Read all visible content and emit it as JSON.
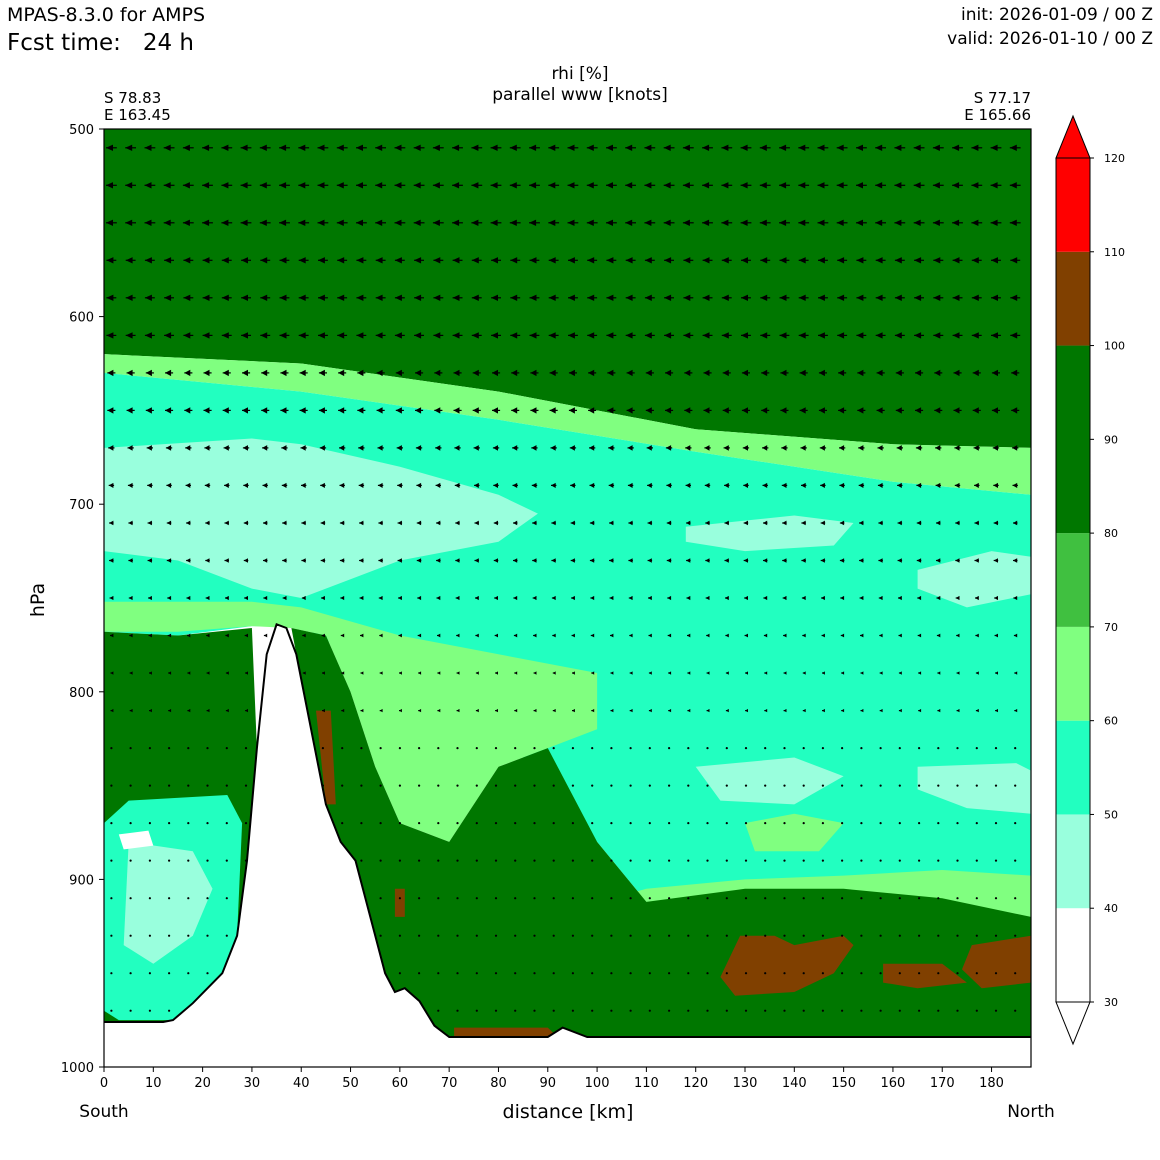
{
  "header": {
    "model": "MPAS-8.3.0 for AMPS",
    "fcst_time": "Fcst time:   24 h",
    "init": "init: 2026-01-09 / 00 Z",
    "valid": "valid: 2026-01-10 / 00 Z"
  },
  "chart_data": {
    "type": "heatmap",
    "title": "rhi [%]",
    "subtitle": "parallel www [knots]",
    "xlabel": "distance [km]",
    "ylabel": "hPa",
    "xlim": [
      0,
      188
    ],
    "ylim": [
      1000,
      500
    ],
    "x_ticks": [
      0,
      10,
      20,
      30,
      40,
      50,
      60,
      70,
      80,
      90,
      100,
      110,
      120,
      130,
      140,
      150,
      160,
      170,
      180
    ],
    "y_ticks": [
      500,
      600,
      700,
      800,
      900,
      1000
    ],
    "left_end": {
      "side": "South",
      "lat": "S 78.83",
      "lon": "E 163.45"
    },
    "right_end": {
      "side": "North",
      "lat": "S 77.17",
      "lon": "E 165.66"
    },
    "colorbar": {
      "ticks": [
        30,
        40,
        50,
        60,
        70,
        80,
        90,
        100,
        110,
        120
      ],
      "extend": "both",
      "bins": [
        {
          "from": 30,
          "to": 40,
          "color": "#ffffff"
        },
        {
          "from": 40,
          "to": 50,
          "color": "#99ffdd"
        },
        {
          "from": 50,
          "to": 60,
          "color": "#22ffc0"
        },
        {
          "from": 60,
          "to": 70,
          "color": "#80ff80"
        },
        {
          "from": 70,
          "to": 80,
          "color": "#40c040"
        },
        {
          "from": 80,
          "to": 100,
          "color": "#007700"
        },
        {
          "from": 100,
          "to": 110,
          "color": "#804000"
        },
        {
          "from": 110,
          "to": 120,
          "color": "#ff0000"
        }
      ]
    },
    "terrain_profile": [
      [
        0,
        976
      ],
      [
        12,
        976
      ],
      [
        14,
        975
      ],
      [
        18,
        966
      ],
      [
        24,
        950
      ],
      [
        27,
        930
      ],
      [
        29,
        890
      ],
      [
        31,
        830
      ],
      [
        33,
        780
      ],
      [
        35,
        764
      ],
      [
        37,
        766
      ],
      [
        39,
        780
      ],
      [
        42,
        820
      ],
      [
        45,
        860
      ],
      [
        48,
        880
      ],
      [
        51,
        890
      ],
      [
        54,
        920
      ],
      [
        57,
        950
      ],
      [
        59,
        960
      ],
      [
        61,
        958
      ],
      [
        64,
        965
      ],
      [
        67,
        978
      ],
      [
        70,
        984
      ],
      [
        90,
        984
      ],
      [
        93,
        979
      ],
      [
        98,
        984
      ],
      [
        188,
        984
      ]
    ],
    "regions": [
      {
        "rhi_bin": 80,
        "points": [
          [
            0,
            500
          ],
          [
            188,
            500
          ],
          [
            188,
            670
          ],
          [
            160,
            668
          ],
          [
            120,
            660
          ],
          [
            80,
            640
          ],
          [
            40,
            625
          ],
          [
            0,
            620
          ]
        ]
      },
      {
        "rhi_bin": 60,
        "points": [
          [
            0,
            620
          ],
          [
            40,
            625
          ],
          [
            80,
            640
          ],
          [
            120,
            660
          ],
          [
            160,
            668
          ],
          [
            188,
            670
          ],
          [
            188,
            695
          ],
          [
            160,
            688
          ],
          [
            120,
            672
          ],
          [
            80,
            655
          ],
          [
            40,
            640
          ],
          [
            0,
            630
          ]
        ]
      },
      {
        "rhi_bin": 50,
        "points": [
          [
            0,
            630
          ],
          [
            40,
            640
          ],
          [
            80,
            655
          ],
          [
            120,
            672
          ],
          [
            160,
            688
          ],
          [
            188,
            695
          ],
          [
            188,
            920
          ],
          [
            170,
            910
          ],
          [
            150,
            905
          ],
          [
            130,
            905
          ],
          [
            110,
            912
          ],
          [
            100,
            880
          ],
          [
            90,
            850
          ],
          [
            80,
            820
          ],
          [
            70,
            800
          ],
          [
            60,
            790
          ],
          [
            50,
            780
          ],
          [
            40,
            765
          ],
          [
            30,
            765
          ],
          [
            15,
            770
          ],
          [
            0,
            768
          ]
        ]
      },
      {
        "rhi_bin": 40,
        "points": [
          [
            0,
            670
          ],
          [
            30,
            665
          ],
          [
            40,
            668
          ],
          [
            60,
            680
          ],
          [
            80,
            695
          ],
          [
            88,
            705
          ],
          [
            80,
            720
          ],
          [
            60,
            730
          ],
          [
            50,
            740
          ],
          [
            40,
            750
          ],
          [
            30,
            745
          ],
          [
            15,
            730
          ],
          [
            0,
            725
          ]
        ]
      },
      {
        "rhi_bin": 40,
        "points": [
          [
            118,
            712
          ],
          [
            140,
            706
          ],
          [
            152,
            710
          ],
          [
            148,
            722
          ],
          [
            130,
            725
          ],
          [
            118,
            720
          ]
        ]
      },
      {
        "rhi_bin": 40,
        "points": [
          [
            165,
            735
          ],
          [
            180,
            725
          ],
          [
            188,
            728
          ],
          [
            188,
            748
          ],
          [
            175,
            755
          ],
          [
            165,
            745
          ]
        ]
      },
      {
        "rhi_bin": 40,
        "points": [
          [
            120,
            840
          ],
          [
            140,
            835
          ],
          [
            150,
            845
          ],
          [
            140,
            860
          ],
          [
            125,
            858
          ]
        ]
      },
      {
        "rhi_bin": 40,
        "points": [
          [
            165,
            840
          ],
          [
            185,
            838
          ],
          [
            188,
            842
          ],
          [
            188,
            865
          ],
          [
            175,
            862
          ],
          [
            165,
            852
          ]
        ]
      },
      {
        "rhi_bin": 40,
        "points": [
          [
            5,
            870
          ],
          [
            20,
            875
          ],
          [
            25,
            900
          ],
          [
            22,
            930
          ],
          [
            10,
            950
          ],
          [
            3,
            940
          ]
        ]
      },
      {
        "rhi_bin": 60,
        "points": [
          [
            0,
            752
          ],
          [
            30,
            752
          ],
          [
            40,
            755
          ],
          [
            60,
            770
          ],
          [
            80,
            780
          ],
          [
            100,
            790
          ],
          [
            100,
            820
          ],
          [
            90,
            830
          ],
          [
            80,
            840
          ],
          [
            75,
            860
          ],
          [
            70,
            880
          ],
          [
            60,
            870
          ],
          [
            55,
            840
          ],
          [
            50,
            800
          ],
          [
            45,
            770
          ],
          [
            38,
            766
          ],
          [
            30,
            765
          ],
          [
            15,
            768
          ],
          [
            0,
            768
          ]
        ]
      },
      {
        "rhi_bin": 60,
        "points": [
          [
            100,
            912
          ],
          [
            110,
            905
          ],
          [
            130,
            900
          ],
          [
            150,
            898
          ],
          [
            170,
            895
          ],
          [
            188,
            898
          ],
          [
            188,
            920
          ],
          [
            170,
            915
          ],
          [
            150,
            912
          ],
          [
            130,
            915
          ],
          [
            110,
            918
          ]
        ]
      },
      {
        "rhi_bin": 60,
        "points": [
          [
            130,
            870
          ],
          [
            140,
            865
          ],
          [
            150,
            870
          ],
          [
            145,
            885
          ],
          [
            132,
            885
          ]
        ]
      },
      {
        "rhi_bin": 80,
        "points": [
          [
            0,
            768
          ],
          [
            15,
            770
          ],
          [
            30,
            766
          ],
          [
            31,
            830
          ],
          [
            29,
            890
          ],
          [
            27,
            930
          ],
          [
            24,
            950
          ],
          [
            18,
            966
          ],
          [
            14,
            975
          ],
          [
            12,
            976
          ],
          [
            0,
            976
          ]
        ]
      },
      {
        "rhi_bin": 80,
        "points": [
          [
            38,
            766
          ],
          [
            45,
            770
          ],
          [
            50,
            800
          ],
          [
            55,
            840
          ],
          [
            60,
            870
          ],
          [
            70,
            880
          ],
          [
            75,
            860
          ],
          [
            80,
            840
          ],
          [
            90,
            830
          ],
          [
            100,
            880
          ],
          [
            110,
            912
          ],
          [
            130,
            905
          ],
          [
            150,
            905
          ],
          [
            170,
            910
          ],
          [
            188,
            920
          ],
          [
            188,
            984
          ],
          [
            98,
            984
          ],
          [
            93,
            979
          ],
          [
            90,
            984
          ],
          [
            70,
            984
          ],
          [
            67,
            978
          ],
          [
            64,
            965
          ],
          [
            61,
            958
          ],
          [
            59,
            960
          ],
          [
            57,
            950
          ],
          [
            54,
            920
          ],
          [
            51,
            890
          ],
          [
            48,
            880
          ],
          [
            45,
            860
          ],
          [
            42,
            820
          ],
          [
            39,
            780
          ]
        ]
      },
      {
        "rhi_bin": 50,
        "points": [
          [
            5,
            858
          ],
          [
            25,
            855
          ],
          [
            28,
            870
          ],
          [
            27,
            930
          ],
          [
            24,
            950
          ],
          [
            18,
            966
          ],
          [
            14,
            975
          ],
          [
            3,
            975
          ],
          [
            0,
            970
          ],
          [
            0,
            870
          ]
        ]
      },
      {
        "rhi_bin": 40,
        "points": [
          [
            5,
            880
          ],
          [
            18,
            885
          ],
          [
            22,
            905
          ],
          [
            18,
            930
          ],
          [
            10,
            945
          ],
          [
            4,
            935
          ]
        ]
      },
      {
        "rhi_bin": 30,
        "points": [
          [
            3,
            876
          ],
          [
            9,
            874
          ],
          [
            10,
            882
          ],
          [
            4,
            884
          ]
        ]
      },
      {
        "rhi_bin": 100,
        "points": [
          [
            129,
            930
          ],
          [
            136,
            930
          ],
          [
            140,
            935
          ],
          [
            150,
            930
          ],
          [
            152,
            935
          ],
          [
            148,
            950
          ],
          [
            140,
            960
          ],
          [
            128,
            962
          ],
          [
            125,
            952
          ]
        ]
      },
      {
        "rhi_bin": 100,
        "points": [
          [
            158,
            945
          ],
          [
            170,
            945
          ],
          [
            175,
            955
          ],
          [
            165,
            958
          ],
          [
            158,
            955
          ]
        ]
      },
      {
        "rhi_bin": 100,
        "points": [
          [
            176,
            935
          ],
          [
            188,
            930
          ],
          [
            188,
            955
          ],
          [
            178,
            958
          ],
          [
            174,
            948
          ]
        ]
      },
      {
        "rhi_bin": 100,
        "points": [
          [
            71,
            979
          ],
          [
            90,
            979
          ],
          [
            92,
            984
          ],
          [
            71,
            984
          ]
        ]
      },
      {
        "rhi_bin": 100,
        "points": [
          [
            43,
            810
          ],
          [
            46,
            810
          ],
          [
            47,
            860
          ],
          [
            45,
            860
          ]
        ]
      },
      {
        "rhi_bin": 100,
        "points": [
          [
            59,
            905
          ],
          [
            61,
            905
          ],
          [
            61,
            920
          ],
          [
            59,
            920
          ]
        ]
      }
    ],
    "wind_levels_hPa": [
      510,
      530,
      550,
      570,
      590,
      610,
      630,
      650,
      670,
      690,
      710,
      730,
      750,
      770,
      790,
      810,
      830,
      850,
      870,
      890,
      910,
      930,
      950,
      970
    ],
    "wind_columns_km": [
      1.5,
      5.4,
      9.3,
      13.2,
      17.1,
      21,
      24.9,
      28.8,
      32.7,
      36.6,
      40.5,
      44.4,
      48.3,
      52.2,
      56.1,
      60,
      63.9,
      67.8,
      71.7,
      75.6,
      79.5,
      83.4,
      87.3,
      91.2,
      95.1,
      99,
      102.9,
      106.8,
      110.7,
      114.6,
      118.5,
      122.4,
      126.3,
      130.2,
      134.1,
      138,
      141.9,
      145.8,
      149.7,
      153.6,
      157.5,
      161.4,
      165.3,
      169.2,
      173.1,
      177,
      180.9,
      184.8
    ],
    "wind_knots_by_level": [
      -12,
      -12,
      -12,
      -11,
      -11,
      -11,
      -9,
      -9,
      -7,
      -6,
      -5,
      -5,
      -4,
      -3,
      -2,
      -2,
      -1,
      -1,
      -1,
      -1,
      -1,
      -1,
      -1,
      -1
    ]
  }
}
